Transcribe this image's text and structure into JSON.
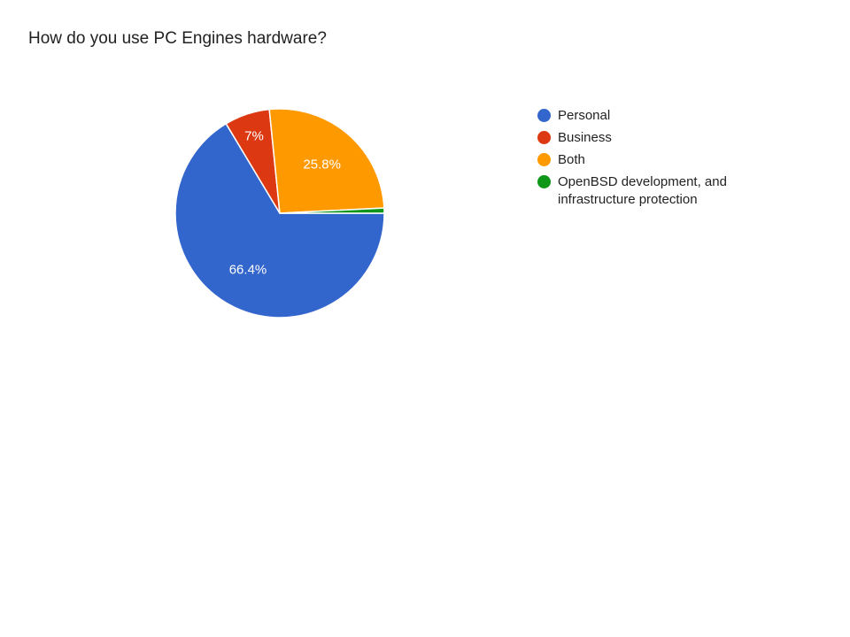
{
  "chart_data": {
    "type": "pie",
    "title": "How do you use PC Engines hardware?",
    "slices": [
      {
        "label": "Personal",
        "value": 66.4,
        "display": "66.4%",
        "color": "#3366cc"
      },
      {
        "label": "Business",
        "value": 7.0,
        "display": "7%",
        "color": "#dc3912"
      },
      {
        "label": "Both",
        "value": 25.8,
        "display": "25.8%",
        "color": "#ff9900"
      },
      {
        "label": "OpenBSD development, and infrastructure protection",
        "value": 0.8,
        "display": "",
        "color": "#109618"
      }
    ],
    "legend_position": "right"
  }
}
